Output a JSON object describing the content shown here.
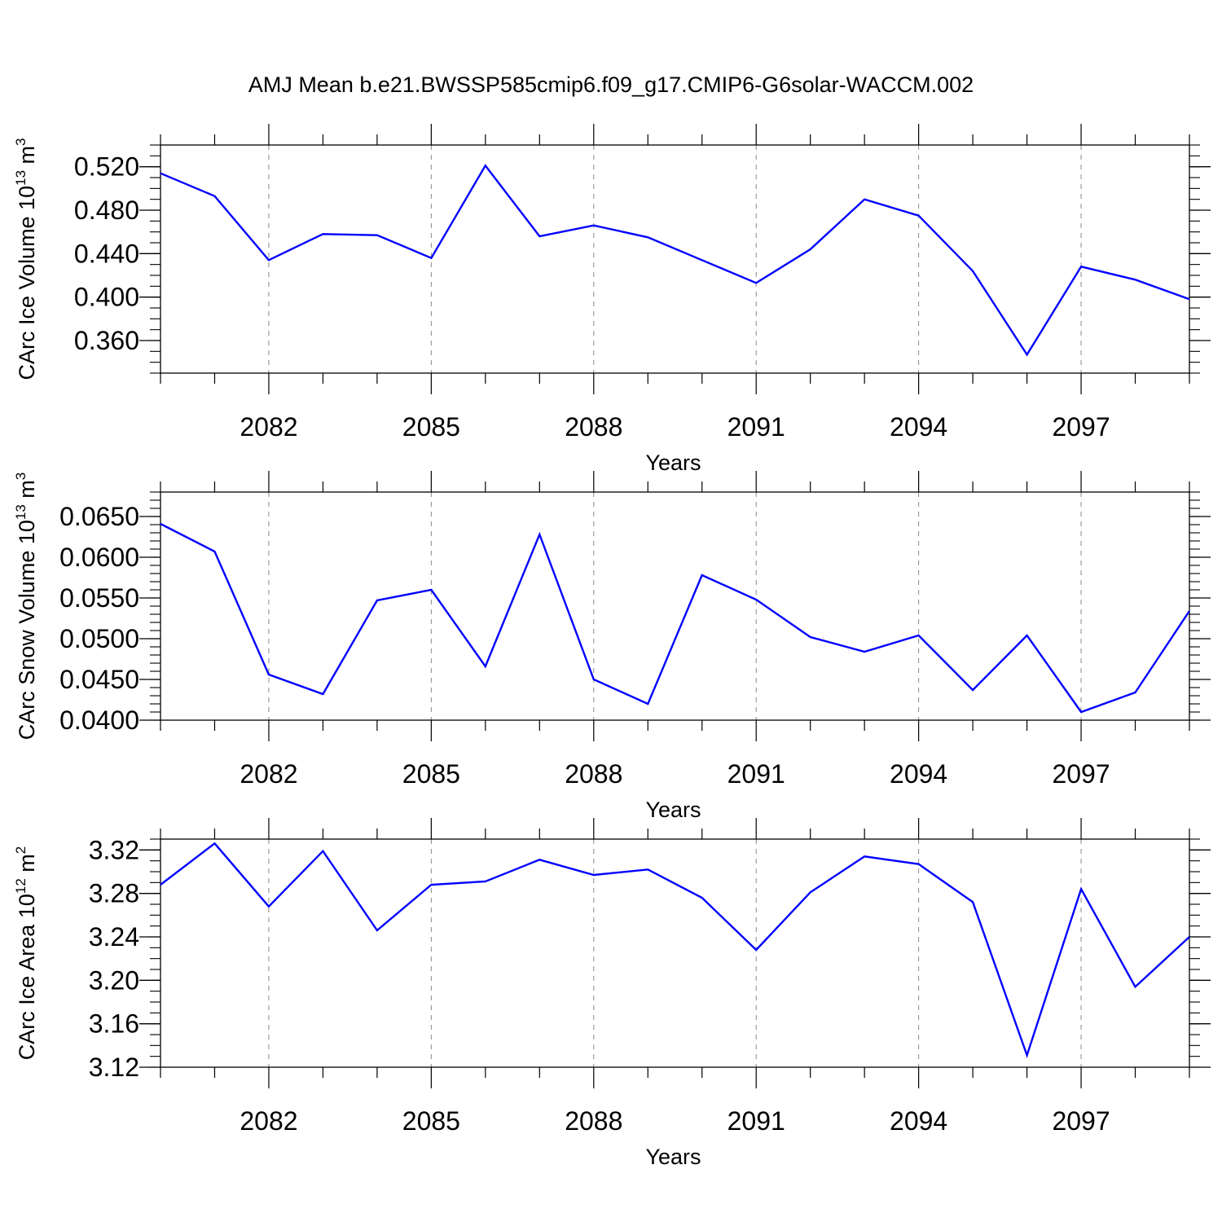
{
  "figure_title": "AMJ Mean b.e21.BWSSP585cmip6.f09_g17.CMIP6-G6solar-WACCM.002",
  "chart_data": [
    {
      "type": "line",
      "xlabel": "Years",
      "ylabel": {
        "text": "CArc Ice Volume 10",
        "exp": "13",
        "unit": " m",
        "unit_exp": "3"
      },
      "xlim": [
        2080,
        2099
      ],
      "ylim": [
        0.33,
        0.54
      ],
      "x_ticks": [
        2082,
        2085,
        2088,
        2091,
        2094,
        2097
      ],
      "y_ticks": [
        0.36,
        0.4,
        0.44,
        0.48,
        0.52
      ],
      "y_tick_labels": [
        "0.360",
        "0.400",
        "0.440",
        "0.480",
        "0.520"
      ],
      "y_minor_step": 0.01,
      "color": "#0000ff",
      "x": [
        2080,
        2081,
        2082,
        2083,
        2084,
        2085,
        2086,
        2087,
        2088,
        2089,
        2090,
        2091,
        2092,
        2093,
        2094,
        2095,
        2096,
        2097,
        2098,
        2099
      ],
      "values": [
        0.514,
        0.493,
        0.434,
        0.458,
        0.457,
        0.436,
        0.521,
        0.456,
        0.466,
        0.455,
        0.434,
        0.413,
        0.444,
        0.49,
        0.475,
        0.424,
        0.347,
        0.428,
        0.416,
        0.398
      ]
    },
    {
      "type": "line",
      "xlabel": "Years",
      "ylabel": {
        "text": "CArc Snow Volume 10",
        "exp": "13",
        "unit": " m",
        "unit_exp": "3"
      },
      "xlim": [
        2080,
        2099
      ],
      "ylim": [
        0.04,
        0.068
      ],
      "x_ticks": [
        2082,
        2085,
        2088,
        2091,
        2094,
        2097
      ],
      "y_ticks": [
        0.04,
        0.045,
        0.05,
        0.055,
        0.06,
        0.065
      ],
      "y_tick_labels": [
        "0.0400",
        "0.0450",
        "0.0500",
        "0.0550",
        "0.0600",
        "0.0650"
      ],
      "y_minor_step": 0.001,
      "color": "#0000ff",
      "x": [
        2080,
        2081,
        2082,
        2083,
        2084,
        2085,
        2086,
        2087,
        2088,
        2089,
        2090,
        2091,
        2092,
        2093,
        2094,
        2095,
        2096,
        2097,
        2098,
        2099
      ],
      "values": [
        0.0641,
        0.0607,
        0.0456,
        0.0432,
        0.0547,
        0.056,
        0.0466,
        0.0628,
        0.045,
        0.042,
        0.0578,
        0.0548,
        0.0502,
        0.0484,
        0.0504,
        0.0437,
        0.0504,
        0.041,
        0.0434,
        0.0534
      ]
    },
    {
      "type": "line",
      "xlabel": "Years",
      "ylabel": {
        "text": "CArc Ice Area 10",
        "exp": "12",
        "unit": " m",
        "unit_exp": "2"
      },
      "xlim": [
        2080,
        2099
      ],
      "ylim": [
        3.12,
        3.33
      ],
      "x_ticks": [
        2082,
        2085,
        2088,
        2091,
        2094,
        2097
      ],
      "y_ticks": [
        3.12,
        3.16,
        3.2,
        3.24,
        3.28,
        3.32
      ],
      "y_tick_labels": [
        "3.12",
        "3.16",
        "3.20",
        "3.24",
        "3.28",
        "3.32"
      ],
      "y_minor_step": 0.01,
      "color": "#0000ff",
      "x": [
        2080,
        2081,
        2082,
        2083,
        2084,
        2085,
        2086,
        2087,
        2088,
        2089,
        2090,
        2091,
        2092,
        2093,
        2094,
        2095,
        2096,
        2097,
        2098,
        2099
      ],
      "values": [
        3.288,
        3.326,
        3.268,
        3.319,
        3.246,
        3.288,
        3.291,
        3.311,
        3.297,
        3.302,
        3.276,
        3.228,
        3.281,
        3.314,
        3.307,
        3.272,
        3.131,
        3.284,
        3.194,
        3.24
      ]
    }
  ]
}
